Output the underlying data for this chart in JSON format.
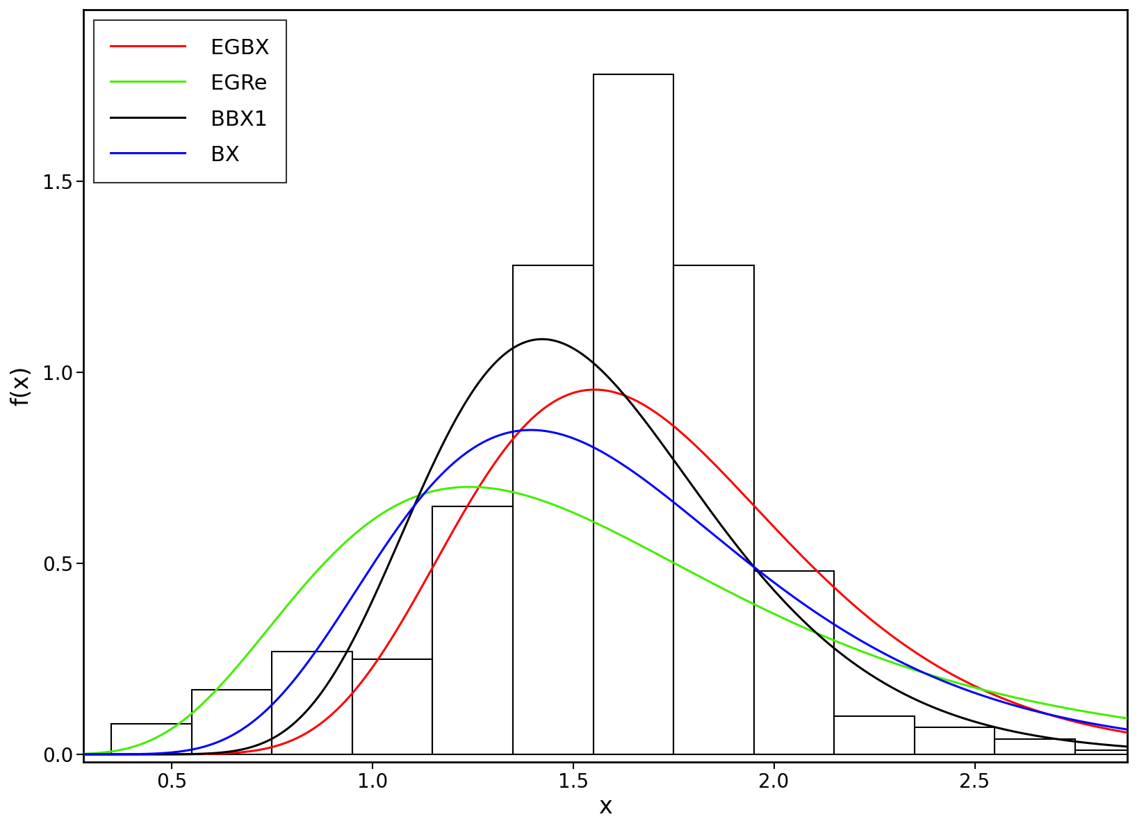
{
  "title": "",
  "xlabel": "x",
  "ylabel": "f(x)",
  "xlim": [
    0.28,
    2.88
  ],
  "ylim": [
    -0.02,
    1.95
  ],
  "yticks": [
    0.0,
    0.5,
    1.0,
    1.5
  ],
  "xticks": [
    0.5,
    1.0,
    1.5,
    2.0,
    2.5
  ],
  "hist_bins": [
    0.35,
    0.55,
    0.75,
    0.95,
    1.15,
    1.35,
    1.55,
    1.75,
    1.95,
    2.15,
    2.35,
    2.55,
    2.75,
    2.95
  ],
  "hist_heights": [
    0.08,
    0.17,
    0.27,
    0.25,
    0.65,
    1.28,
    1.78,
    1.28,
    0.48,
    0.1,
    0.07,
    0.04,
    0.01
  ],
  "line_colors": [
    "red",
    "#44ee00",
    "black",
    "blue"
  ],
  "line_labels": [
    "EGBX",
    "EGRe",
    "BBX1",
    "BX"
  ],
  "line_width": 2.2,
  "legend_loc": "upper left",
  "background_color": "white",
  "axes_linewidth": 2.0,
  "EGBX_mu_ln": 0.508,
  "EGBX_s_ln": 0.26,
  "EGRe_mu_ln": 0.393,
  "EGRe_s_ln": 0.42,
  "BBX1_mu_ln": 0.415,
  "BBX1_s_ln": 0.25,
  "BX_mu_ln": 0.435,
  "BX_s_ln": 0.32,
  "tick_fontsize": 20,
  "label_fontsize": 24
}
